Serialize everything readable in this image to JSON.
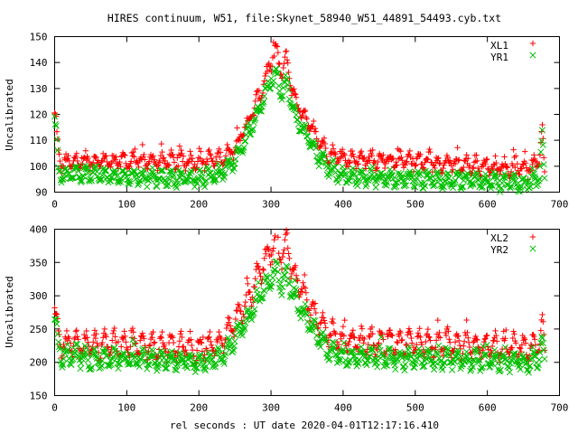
{
  "title": "HIRES continuum, W51, file:Skynet_58940_W51_44891_54493.cyb.txt",
  "xlabel": "rel seconds : UT date 2020-04-01T12:17:16.410",
  "colors": {
    "xl": "#ff0000",
    "yr": "#00c000"
  },
  "chart_data": [
    {
      "type": "scatter",
      "ylabel": "Uncalibrated",
      "xlim": [
        0,
        700
      ],
      "ylim": [
        90,
        150
      ],
      "xticks": [
        "0",
        "100",
        "200",
        "300",
        "400",
        "500",
        "600",
        "700"
      ],
      "yticks": [
        "90",
        "100",
        "110",
        "120",
        "130",
        "140",
        "150"
      ],
      "legend": "top-right",
      "series": [
        {
          "name": "XL1",
          "marker": "+",
          "baseline": 100,
          "ripple": 2.5,
          "noise": 1.8,
          "edge_start": 118,
          "edge_end": 114,
          "peak": 43,
          "samples": [
            [
              0,
              120
            ],
            [
              2,
              117
            ],
            [
              5,
              104
            ],
            [
              10,
              101
            ],
            [
              40,
              102
            ],
            [
              100,
              102
            ],
            [
              200,
              102
            ],
            [
              230,
              103
            ],
            [
              250,
              107
            ],
            [
              270,
              118
            ],
            [
              285,
              128
            ],
            [
              300,
              140
            ],
            [
              308,
              145
            ],
            [
              315,
              135
            ],
            [
              322,
              142
            ],
            [
              330,
              128
            ],
            [
              340,
              122
            ],
            [
              350,
              118
            ],
            [
              360,
              112
            ],
            [
              380,
              105
            ],
            [
              400,
              103
            ],
            [
              500,
              102
            ],
            [
              600,
              100
            ],
            [
              660,
              99
            ],
            [
              672,
              103
            ],
            [
              676,
              114
            ],
            [
              680,
              95
            ]
          ]
        },
        {
          "name": "YR1",
          "marker": "x",
          "baseline": 95,
          "ripple": 2.5,
          "noise": 1.3,
          "edge_start": 116,
          "edge_end": 110,
          "peak": 38,
          "samples": [
            [
              0,
              118
            ],
            [
              2,
              114
            ],
            [
              5,
              99
            ],
            [
              10,
              97
            ],
            [
              40,
              97
            ],
            [
              100,
              96
            ],
            [
              200,
              95
            ],
            [
              230,
              97
            ],
            [
              250,
              102
            ],
            [
              270,
              113
            ],
            [
              285,
              123
            ],
            [
              300,
              133
            ],
            [
              308,
              136
            ],
            [
              315,
              128
            ],
            [
              322,
              133
            ],
            [
              330,
              122
            ],
            [
              340,
              116
            ],
            [
              350,
              112
            ],
            [
              360,
              106
            ],
            [
              380,
              99
            ],
            [
              400,
              96
            ],
            [
              500,
              95
            ],
            [
              600,
              94
            ],
            [
              660,
              93
            ],
            [
              672,
              96
            ],
            [
              676,
              110
            ],
            [
              680,
              93
            ]
          ]
        }
      ]
    },
    {
      "type": "scatter",
      "ylabel": "Uncalibrated",
      "xlim": [
        0,
        700
      ],
      "ylim": [
        150,
        400
      ],
      "xticks": [
        "0",
        "100",
        "200",
        "300",
        "400",
        "500",
        "600",
        "700"
      ],
      "yticks": [
        "150",
        "200",
        "250",
        "300",
        "350",
        "400"
      ],
      "legend": "top-right",
      "series": [
        {
          "name": "XL2",
          "marker": "+",
          "baseline": 225,
          "ripple": 17,
          "noise": 8,
          "edge_start": 278,
          "edge_end": 252,
          "peak": 150,
          "samples": [
            [
              0,
              278
            ],
            [
              2,
              262
            ],
            [
              5,
              240
            ],
            [
              10,
              225
            ],
            [
              50,
              225
            ],
            [
              100,
              228
            ],
            [
              200,
              222
            ],
            [
              230,
              228
            ],
            [
              250,
              260
            ],
            [
              270,
              300
            ],
            [
              285,
              335
            ],
            [
              300,
              370
            ],
            [
              308,
              385
            ],
            [
              315,
              355
            ],
            [
              322,
              380
            ],
            [
              330,
              335
            ],
            [
              340,
              315
            ],
            [
              350,
              295
            ],
            [
              360,
              270
            ],
            [
              380,
              245
            ],
            [
              400,
              232
            ],
            [
              500,
              230
            ],
            [
              600,
              226
            ],
            [
              660,
              220
            ],
            [
              672,
              230
            ],
            [
              676,
              250
            ],
            [
              680,
              212
            ]
          ]
        },
        {
          "name": "YR2",
          "marker": "x",
          "baseline": 205,
          "ripple": 12,
          "noise": 6,
          "edge_start": 262,
          "edge_end": 230,
          "peak": 125,
          "samples": [
            [
              0,
              262
            ],
            [
              2,
              250
            ],
            [
              5,
              225
            ],
            [
              10,
              210
            ],
            [
              50,
              205
            ],
            [
              100,
              205
            ],
            [
              200,
              200
            ],
            [
              230,
              206
            ],
            [
              250,
              235
            ],
            [
              270,
              270
            ],
            [
              285,
              300
            ],
            [
              300,
              325
            ],
            [
              308,
              338
            ],
            [
              315,
              312
            ],
            [
              322,
              334
            ],
            [
              330,
              300
            ],
            [
              340,
              283
            ],
            [
              350,
              268
            ],
            [
              360,
              245
            ],
            [
              380,
              218
            ],
            [
              400,
              208
            ],
            [
              500,
              205
            ],
            [
              600,
              203
            ],
            [
              660,
              200
            ],
            [
              672,
              208
            ],
            [
              676,
              230
            ],
            [
              680,
              192
            ]
          ]
        }
      ]
    }
  ]
}
